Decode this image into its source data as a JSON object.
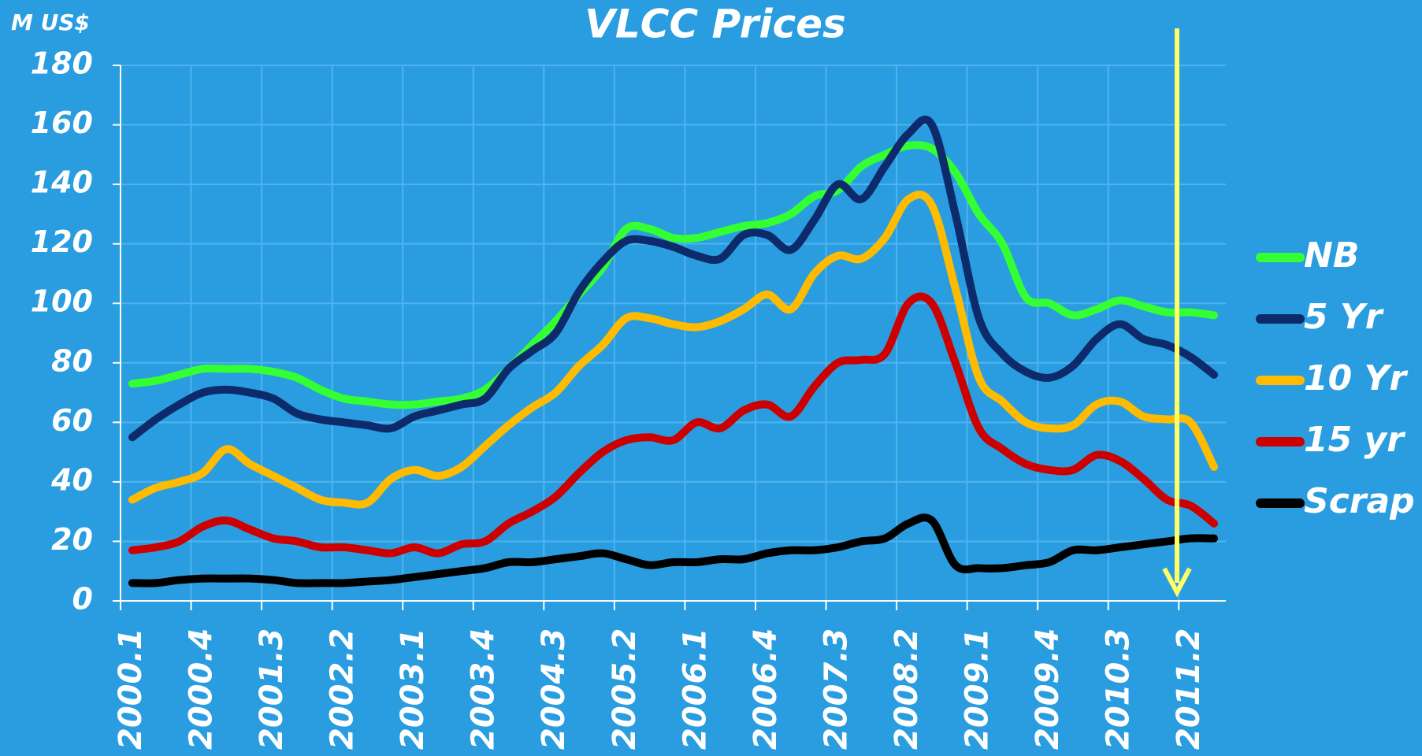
{
  "chart_data": {
    "type": "line",
    "title": "VLCC Prices",
    "y_label": "M US$",
    "categories": [
      "2000.1",
      null,
      null,
      "2000.4",
      null,
      null,
      "2001.3",
      null,
      null,
      "2002.2",
      null,
      null,
      "2003.1",
      null,
      null,
      "2003.4",
      null,
      null,
      "2004.3",
      null,
      null,
      "2005.2",
      null,
      null,
      "2006.1",
      null,
      null,
      "2006.4",
      null,
      null,
      "2007.3",
      null,
      null,
      "2008.2",
      null,
      null,
      "2009.1",
      null,
      null,
      "2009.4",
      null,
      null,
      "2010.3",
      null,
      null,
      "2011.2",
      null
    ],
    "series": [
      {
        "name": "NB",
        "color": "#33ff33",
        "values": [
          73,
          74,
          76,
          78,
          78,
          78,
          77,
          75,
          71,
          68,
          67,
          66,
          66,
          67,
          68,
          71,
          78,
          86,
          94,
          103,
          112,
          125,
          125,
          122,
          122,
          124,
          126,
          127,
          130,
          136,
          138,
          146,
          150,
          153,
          152,
          144,
          130,
          120,
          102,
          100,
          96,
          98,
          101,
          99,
          97,
          97,
          96
        ]
      },
      {
        "name": "5 Yr",
        "color": "#0d2a6b",
        "values": [
          55,
          61,
          66,
          70,
          71,
          70,
          68,
          63,
          61,
          60,
          59,
          58,
          62,
          64,
          66,
          68,
          78,
          84,
          90,
          104,
          114,
          121,
          121,
          119,
          116,
          115,
          123,
          123,
          118,
          128,
          140,
          135,
          146,
          157,
          160,
          130,
          95,
          83,
          77,
          75,
          79,
          88,
          93,
          88,
          86,
          82,
          76
        ]
      },
      {
        "name": "10 Yr",
        "color": "#ffbb00",
        "values": [
          34,
          38,
          40,
          43,
          51,
          46,
          42,
          38,
          34,
          33,
          33,
          41,
          44,
          42,
          45,
          52,
          59,
          65,
          70,
          79,
          86,
          95,
          95,
          93,
          92,
          94,
          98,
          103,
          98,
          110,
          116,
          115,
          122,
          135,
          133,
          105,
          75,
          67,
          60,
          58,
          59,
          66,
          67,
          62,
          61,
          60,
          45
        ]
      },
      {
        "name": "15 yr",
        "color": "#cc0000",
        "values": [
          17,
          18,
          20,
          25,
          27,
          24,
          21,
          20,
          18,
          18,
          17,
          16,
          18,
          16,
          19,
          20,
          26,
          30,
          35,
          43,
          50,
          54,
          55,
          54,
          60,
          58,
          64,
          66,
          62,
          72,
          80,
          81,
          83,
          100,
          100,
          80,
          58,
          51,
          46,
          44,
          44,
          49,
          47,
          41,
          34,
          32,
          26
        ]
      },
      {
        "name": "Scrap",
        "color": "#000000",
        "values": [
          6,
          6,
          7,
          7.5,
          7.5,
          7.5,
          7,
          6,
          6,
          6,
          6.5,
          7,
          8,
          9,
          10,
          11,
          13,
          13,
          14,
          15,
          16,
          14,
          12,
          13,
          13,
          14,
          14,
          16,
          17,
          17,
          18,
          20,
          21,
          26,
          27,
          12,
          11,
          11,
          12,
          13,
          17,
          17,
          18,
          19,
          20,
          21,
          21
        ]
      }
    ],
    "ylim": [
      0,
      180
    ],
    "yticks": [
      0,
      20,
      40,
      60,
      80,
      100,
      120,
      140,
      160,
      180
    ],
    "grid": true,
    "legend": "right"
  }
}
